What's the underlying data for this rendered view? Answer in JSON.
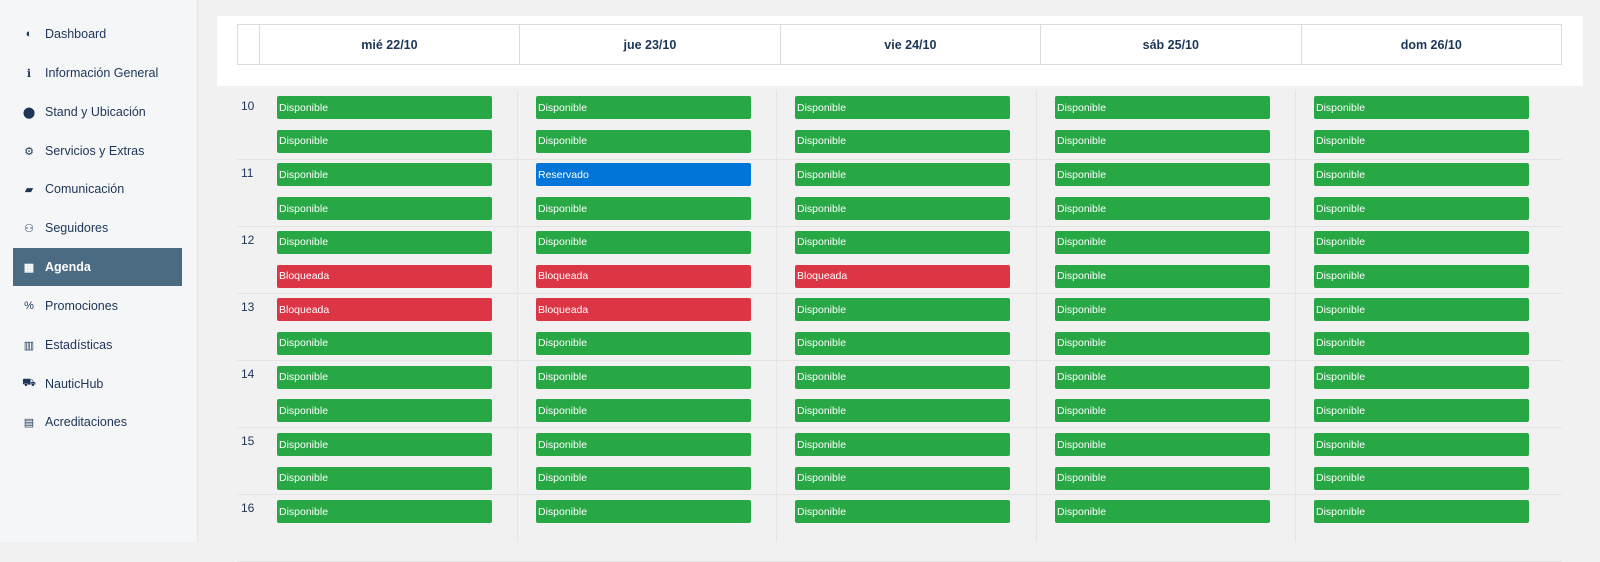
{
  "colors": {
    "disponible": "#28a745",
    "bloqueada": "#dc3545",
    "reservado": "#0275d8",
    "active_nav": "#4a6b82"
  },
  "sidebar": {
    "items": [
      {
        "label": "Dashboard",
        "icon": "dashboard-icon"
      },
      {
        "label": "Información General",
        "icon": "info-icon"
      },
      {
        "label": "Stand y Ubicación",
        "icon": "map-marker-icon"
      },
      {
        "label": "Servicios y Extras",
        "icon": "cogs-icon"
      },
      {
        "label": "Comunicación",
        "icon": "comments-icon"
      },
      {
        "label": "Seguidores",
        "icon": "users-icon"
      },
      {
        "label": "Agenda",
        "icon": "calendar-icon",
        "active": true
      },
      {
        "label": "Promociones",
        "icon": "percent-icon"
      },
      {
        "label": "Estadísticas",
        "icon": "chart-icon"
      },
      {
        "label": "NauticHub",
        "icon": "cart-icon"
      },
      {
        "label": "Acreditaciones",
        "icon": "badge-icon"
      }
    ]
  },
  "agenda": {
    "days": [
      "mié 22/10",
      "jue 23/10",
      "vie 24/10",
      "sáb 25/10",
      "dom 26/10"
    ],
    "hours": [
      "10",
      "11",
      "12",
      "13",
      "14",
      "15",
      "16"
    ],
    "status_labels": {
      "D": "Disponible",
      "B": "Bloqueada",
      "R": "Reservado"
    },
    "slots": [
      [
        "D",
        "D",
        "D",
        "D",
        "D"
      ],
      [
        "D",
        "D",
        "D",
        "D",
        "D"
      ],
      [
        "D",
        "R",
        "D",
        "D",
        "D"
      ],
      [
        "D",
        "D",
        "D",
        "D",
        "D"
      ],
      [
        "D",
        "D",
        "D",
        "D",
        "D"
      ],
      [
        "B",
        "B",
        "B",
        "D",
        "D"
      ],
      [
        "B",
        "B",
        "D",
        "D",
        "D"
      ],
      [
        "D",
        "D",
        "D",
        "D",
        "D"
      ],
      [
        "D",
        "D",
        "D",
        "D",
        "D"
      ],
      [
        "D",
        "D",
        "D",
        "D",
        "D"
      ],
      [
        "D",
        "D",
        "D",
        "D",
        "D"
      ],
      [
        "D",
        "D",
        "D",
        "D",
        "D"
      ],
      [
        "D",
        "D",
        "D",
        "D",
        "D"
      ]
    ]
  }
}
